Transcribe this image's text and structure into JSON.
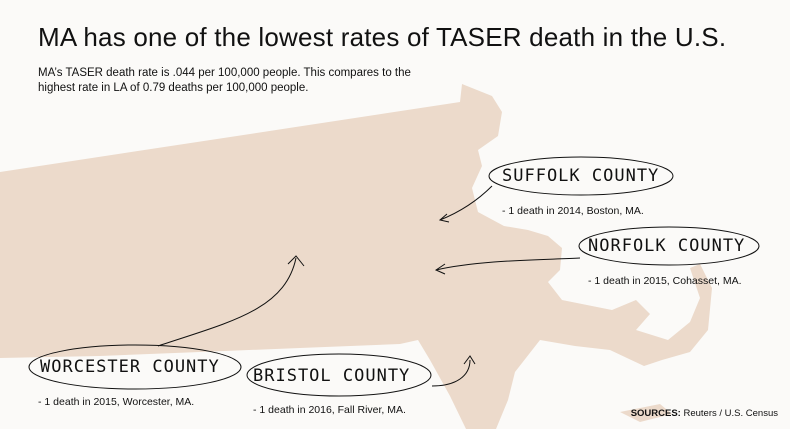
{
  "header": {
    "title": "MA has one of the lowest rates of TASER death in the U.S.",
    "subtitle": "MA’s TASER death rate is .044  per 100,000 people. This compares to the highest rate in LA of 0.79 deaths per 100,000 people."
  },
  "counties": [
    {
      "id": "suffolk",
      "name": "SUFFOLK COUNTY",
      "note": "- 1 death in 2014, Boston, MA."
    },
    {
      "id": "norfolk",
      "name": "NORFOLK COUNTY",
      "note": "- 1 death in 2015, Cohasset, MA."
    },
    {
      "id": "worcester",
      "name": "WORCESTER COUNTY",
      "note": "- 1 death in 2015, Worcester, MA."
    },
    {
      "id": "bristol",
      "name": "BRISTOL COUNTY",
      "note": "- 1 death in 2016, Fall River, MA."
    }
  ],
  "sources": {
    "label": "SOURCES:",
    "text": "Reuters  /  U.S. Census"
  },
  "colors": {
    "land": "#ecdacb",
    "background": "#fbfaf8",
    "ink": "#111111"
  }
}
